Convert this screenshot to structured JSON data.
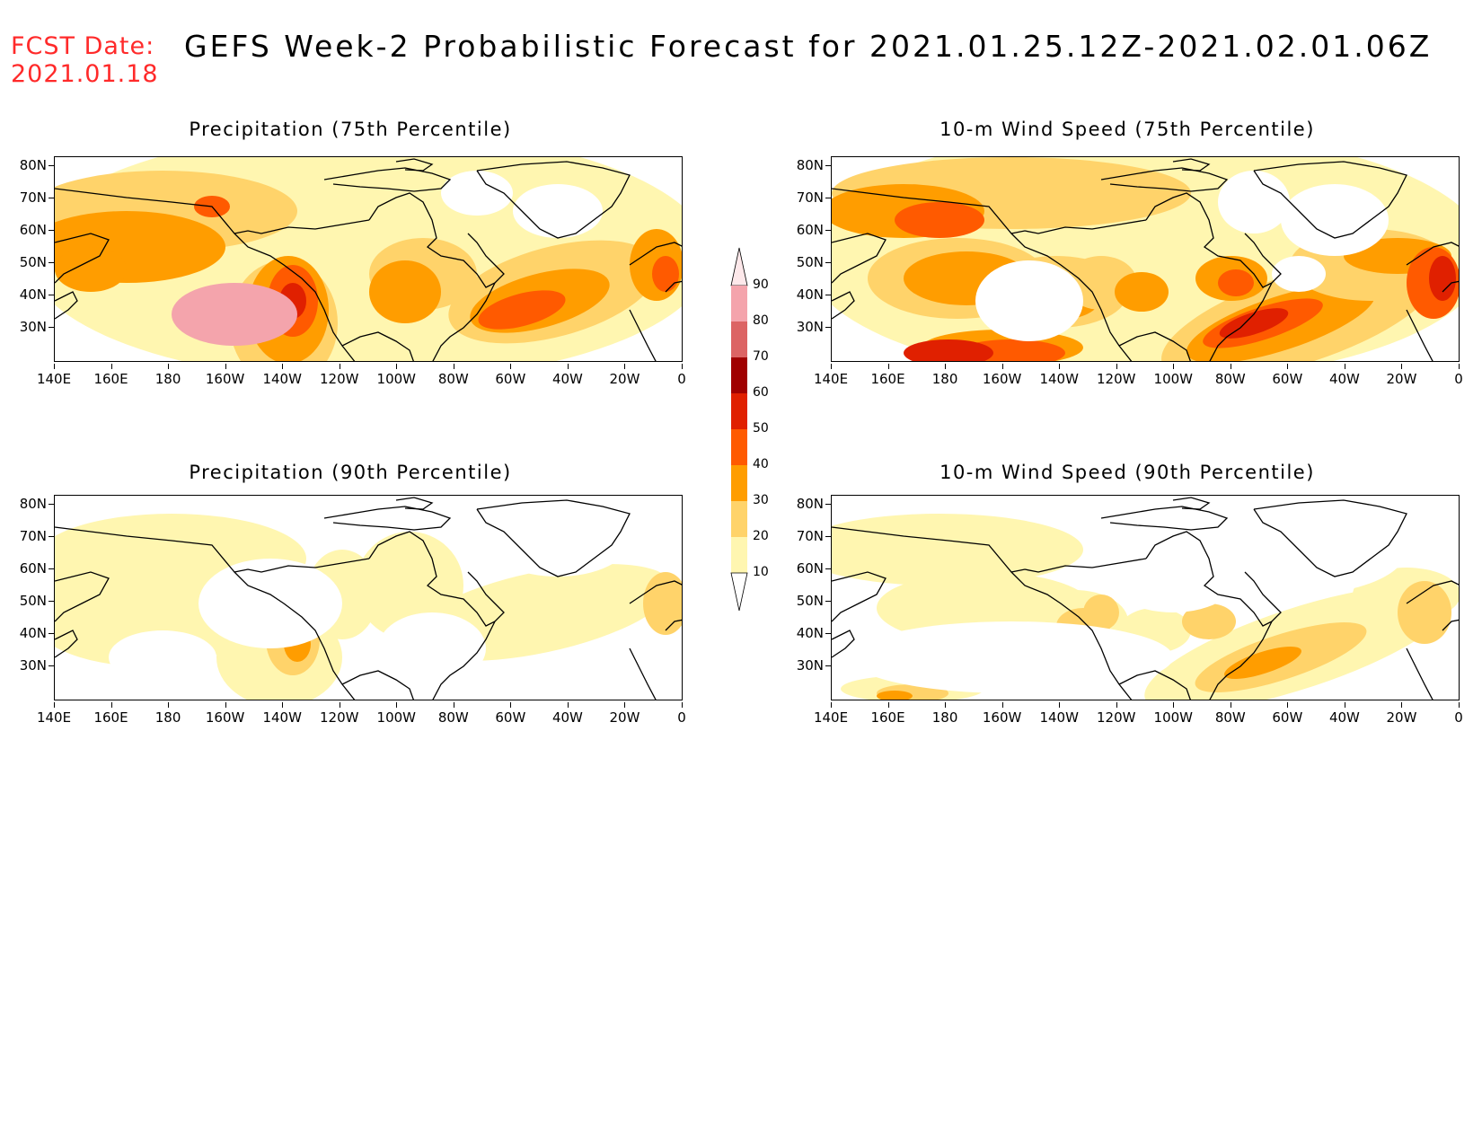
{
  "header": {
    "fcst_label": "FCST Date:",
    "fcst_date": "2021.01.18",
    "title": "GEFS Week-2 Probabilistic Forecast for 2021.01.25.12Z-2021.02.01.06Z"
  },
  "lat_ticks": [
    "80N",
    "70N",
    "60N",
    "50N",
    "40N",
    "30N"
  ],
  "lon_ticks": [
    "140E",
    "160E",
    "180",
    "160W",
    "140W",
    "120W",
    "100W",
    "80W",
    "60W",
    "40W",
    "20W",
    "0"
  ],
  "panels": [
    {
      "id": "p75",
      "title": "Precipitation (75th Percentile)"
    },
    {
      "id": "w75",
      "title": "10-m Wind Speed (75th Percentile)"
    },
    {
      "id": "p90",
      "title": "Precipitation (90th Percentile)"
    },
    {
      "id": "w90",
      "title": "10-m Wind Speed (90th Percentile)"
    }
  ],
  "colorbar": {
    "labels": [
      "90",
      "80",
      "70",
      "60",
      "50",
      "40",
      "30",
      "20",
      "10"
    ],
    "colors": [
      "#f4a4ac",
      "#dc6464",
      "#a00000",
      "#e02000",
      "#ff5a00",
      "#ff9d00",
      "#ffd36a",
      "#fff6b0"
    ]
  }
}
